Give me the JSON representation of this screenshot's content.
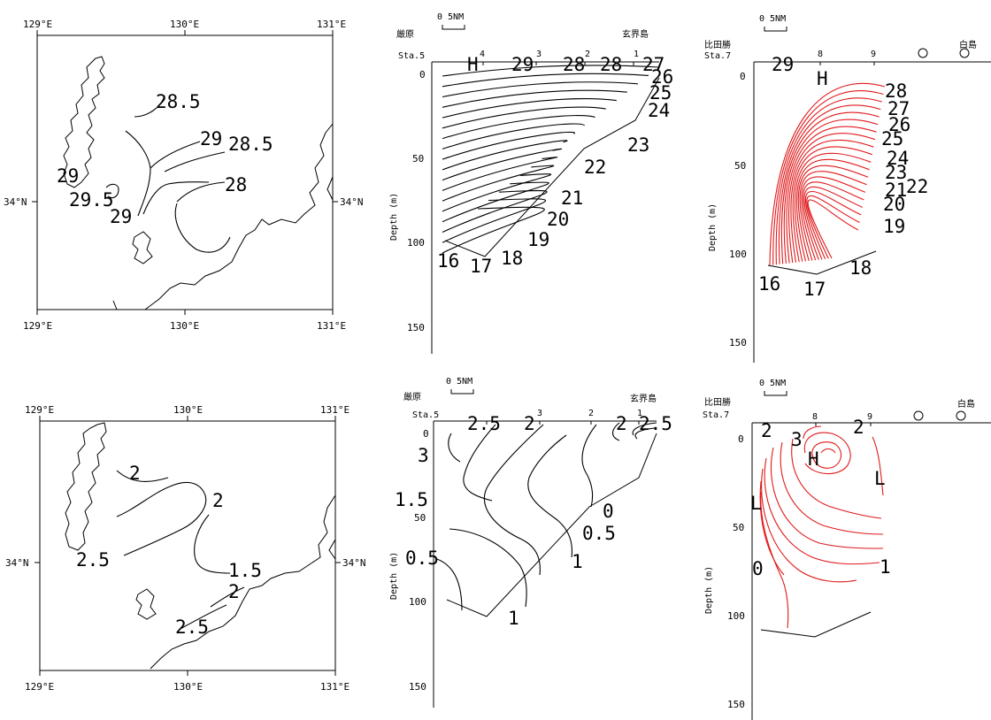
{
  "chart_data": [
    {
      "id": "map_top",
      "type": "contour_map",
      "lon_ticks": [
        "129°E",
        "130°E",
        "131°E"
      ],
      "lat_ticks": [
        "34°N"
      ],
      "contour_labels": [
        "28.5",
        "29",
        "28.5",
        "29",
        "28",
        "29.5",
        "29"
      ]
    },
    {
      "id": "section_a_top",
      "type": "contour_section",
      "left_name": "厳原",
      "right_name": "玄界島",
      "station_prefix": "Sta.5",
      "stations": [
        "4",
        "3",
        "2",
        "1"
      ],
      "scale_label": "0  5NM",
      "ylabel": "Depth (m)",
      "yticks": [
        "0",
        "50",
        "100",
        "150"
      ],
      "ylim": [
        0,
        150
      ],
      "markers": [
        "H"
      ],
      "contour_labels": [
        "29",
        "28",
        "28",
        "27",
        "26",
        "25",
        "24",
        "23",
        "22",
        "21",
        "20",
        "19",
        "18",
        "17",
        "16"
      ]
    },
    {
      "id": "section_b_top",
      "type": "contour_section",
      "left_name": "比田勝",
      "right_name": "白島",
      "station_prefix": "Sta.7",
      "stations": [
        "8",
        "9"
      ],
      "scale_label": "0  5NM",
      "ylabel": "Depth (m)",
      "yticks": [
        "0",
        "50",
        "100",
        "150"
      ],
      "ylim": [
        0,
        150
      ],
      "markers": [
        "H"
      ],
      "contour_labels": [
        "29",
        "28",
        "27",
        "26",
        "25",
        "24",
        "23",
        "21",
        "22",
        "20",
        "19",
        "18",
        "17",
        "16"
      ]
    },
    {
      "id": "map_bottom",
      "type": "contour_map",
      "lon_ticks": [
        "129°E",
        "130°E",
        "131°E"
      ],
      "lat_ticks": [
        "34°N"
      ],
      "contour_labels": [
        "2",
        "2",
        "2.5",
        "1.5",
        "2",
        "2.5"
      ]
    },
    {
      "id": "section_a_bottom",
      "type": "contour_section",
      "left_name": "厳原",
      "right_name": "玄界島",
      "station_prefix": "Sta.5",
      "stations": [
        "3",
        "2",
        "1"
      ],
      "scale_label": "0  5NM",
      "ylabel": "Depth (m)",
      "yticks": [
        "0",
        "50",
        "100",
        "150"
      ],
      "ylim": [
        0,
        150
      ],
      "contour_labels": [
        "2.5",
        "2",
        "2",
        "2.5",
        "3",
        "1.5",
        "0",
        "0.5",
        "0.5",
        "1",
        "1"
      ]
    },
    {
      "id": "section_b_bottom",
      "type": "contour_section",
      "left_name": "比田勝",
      "right_name": "白島",
      "station_prefix": "Sta.7",
      "stations": [
        "8",
        "9"
      ],
      "scale_label": "0  5NM",
      "ylabel": "Depth (m)",
      "yticks": [
        "0",
        "50",
        "100",
        "150"
      ],
      "ylim": [
        0,
        150
      ],
      "markers": [
        "H",
        "L",
        "L"
      ],
      "contour_labels": [
        "2",
        "3",
        "2",
        "0",
        "1"
      ]
    }
  ]
}
